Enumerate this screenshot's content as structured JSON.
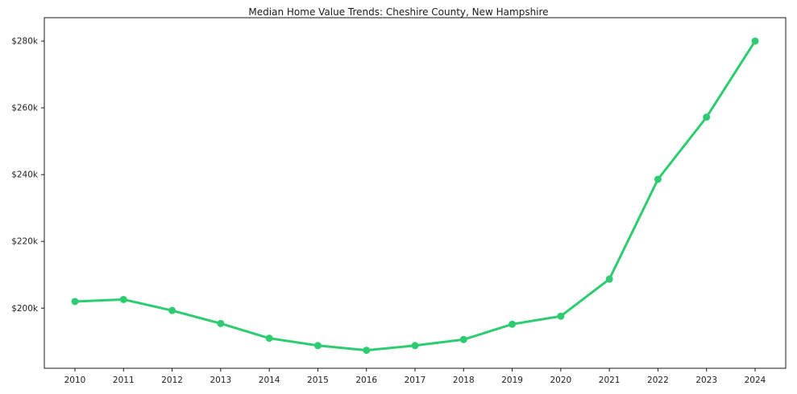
{
  "chart_data": {
    "type": "line",
    "title": "Median Home Value Trends: Cheshire County, New Hampshire",
    "categories": [
      "2010",
      "2011",
      "2012",
      "2013",
      "2014",
      "2015",
      "2016",
      "2017",
      "2018",
      "2019",
      "2020",
      "2021",
      "2022",
      "2023",
      "2024"
    ],
    "series": [
      {
        "name": "Median Home Value",
        "values": [
          202.0,
          202.6,
          199.3,
          195.4,
          191.0,
          188.8,
          187.4,
          188.8,
          190.6,
          195.2,
          197.6,
          208.7,
          238.6,
          257.2,
          280.0
        ]
      }
    ],
    "value_units": "thousands of USD",
    "ylim": [
      182,
      287
    ],
    "yticks": {
      "values": [
        200,
        220,
        240,
        260,
        280
      ],
      "labels": [
        "$200k",
        "$220k",
        "$240k",
        "$260k",
        "$280k"
      ]
    },
    "xlabel": "",
    "ylabel": "",
    "grid": false,
    "legend": "none",
    "colors": {
      "line": "#2ecc71",
      "marker": "#2ecc71",
      "frame": "#1a1a1a",
      "tick_text": "#222222",
      "background": "#ffffff"
    }
  }
}
